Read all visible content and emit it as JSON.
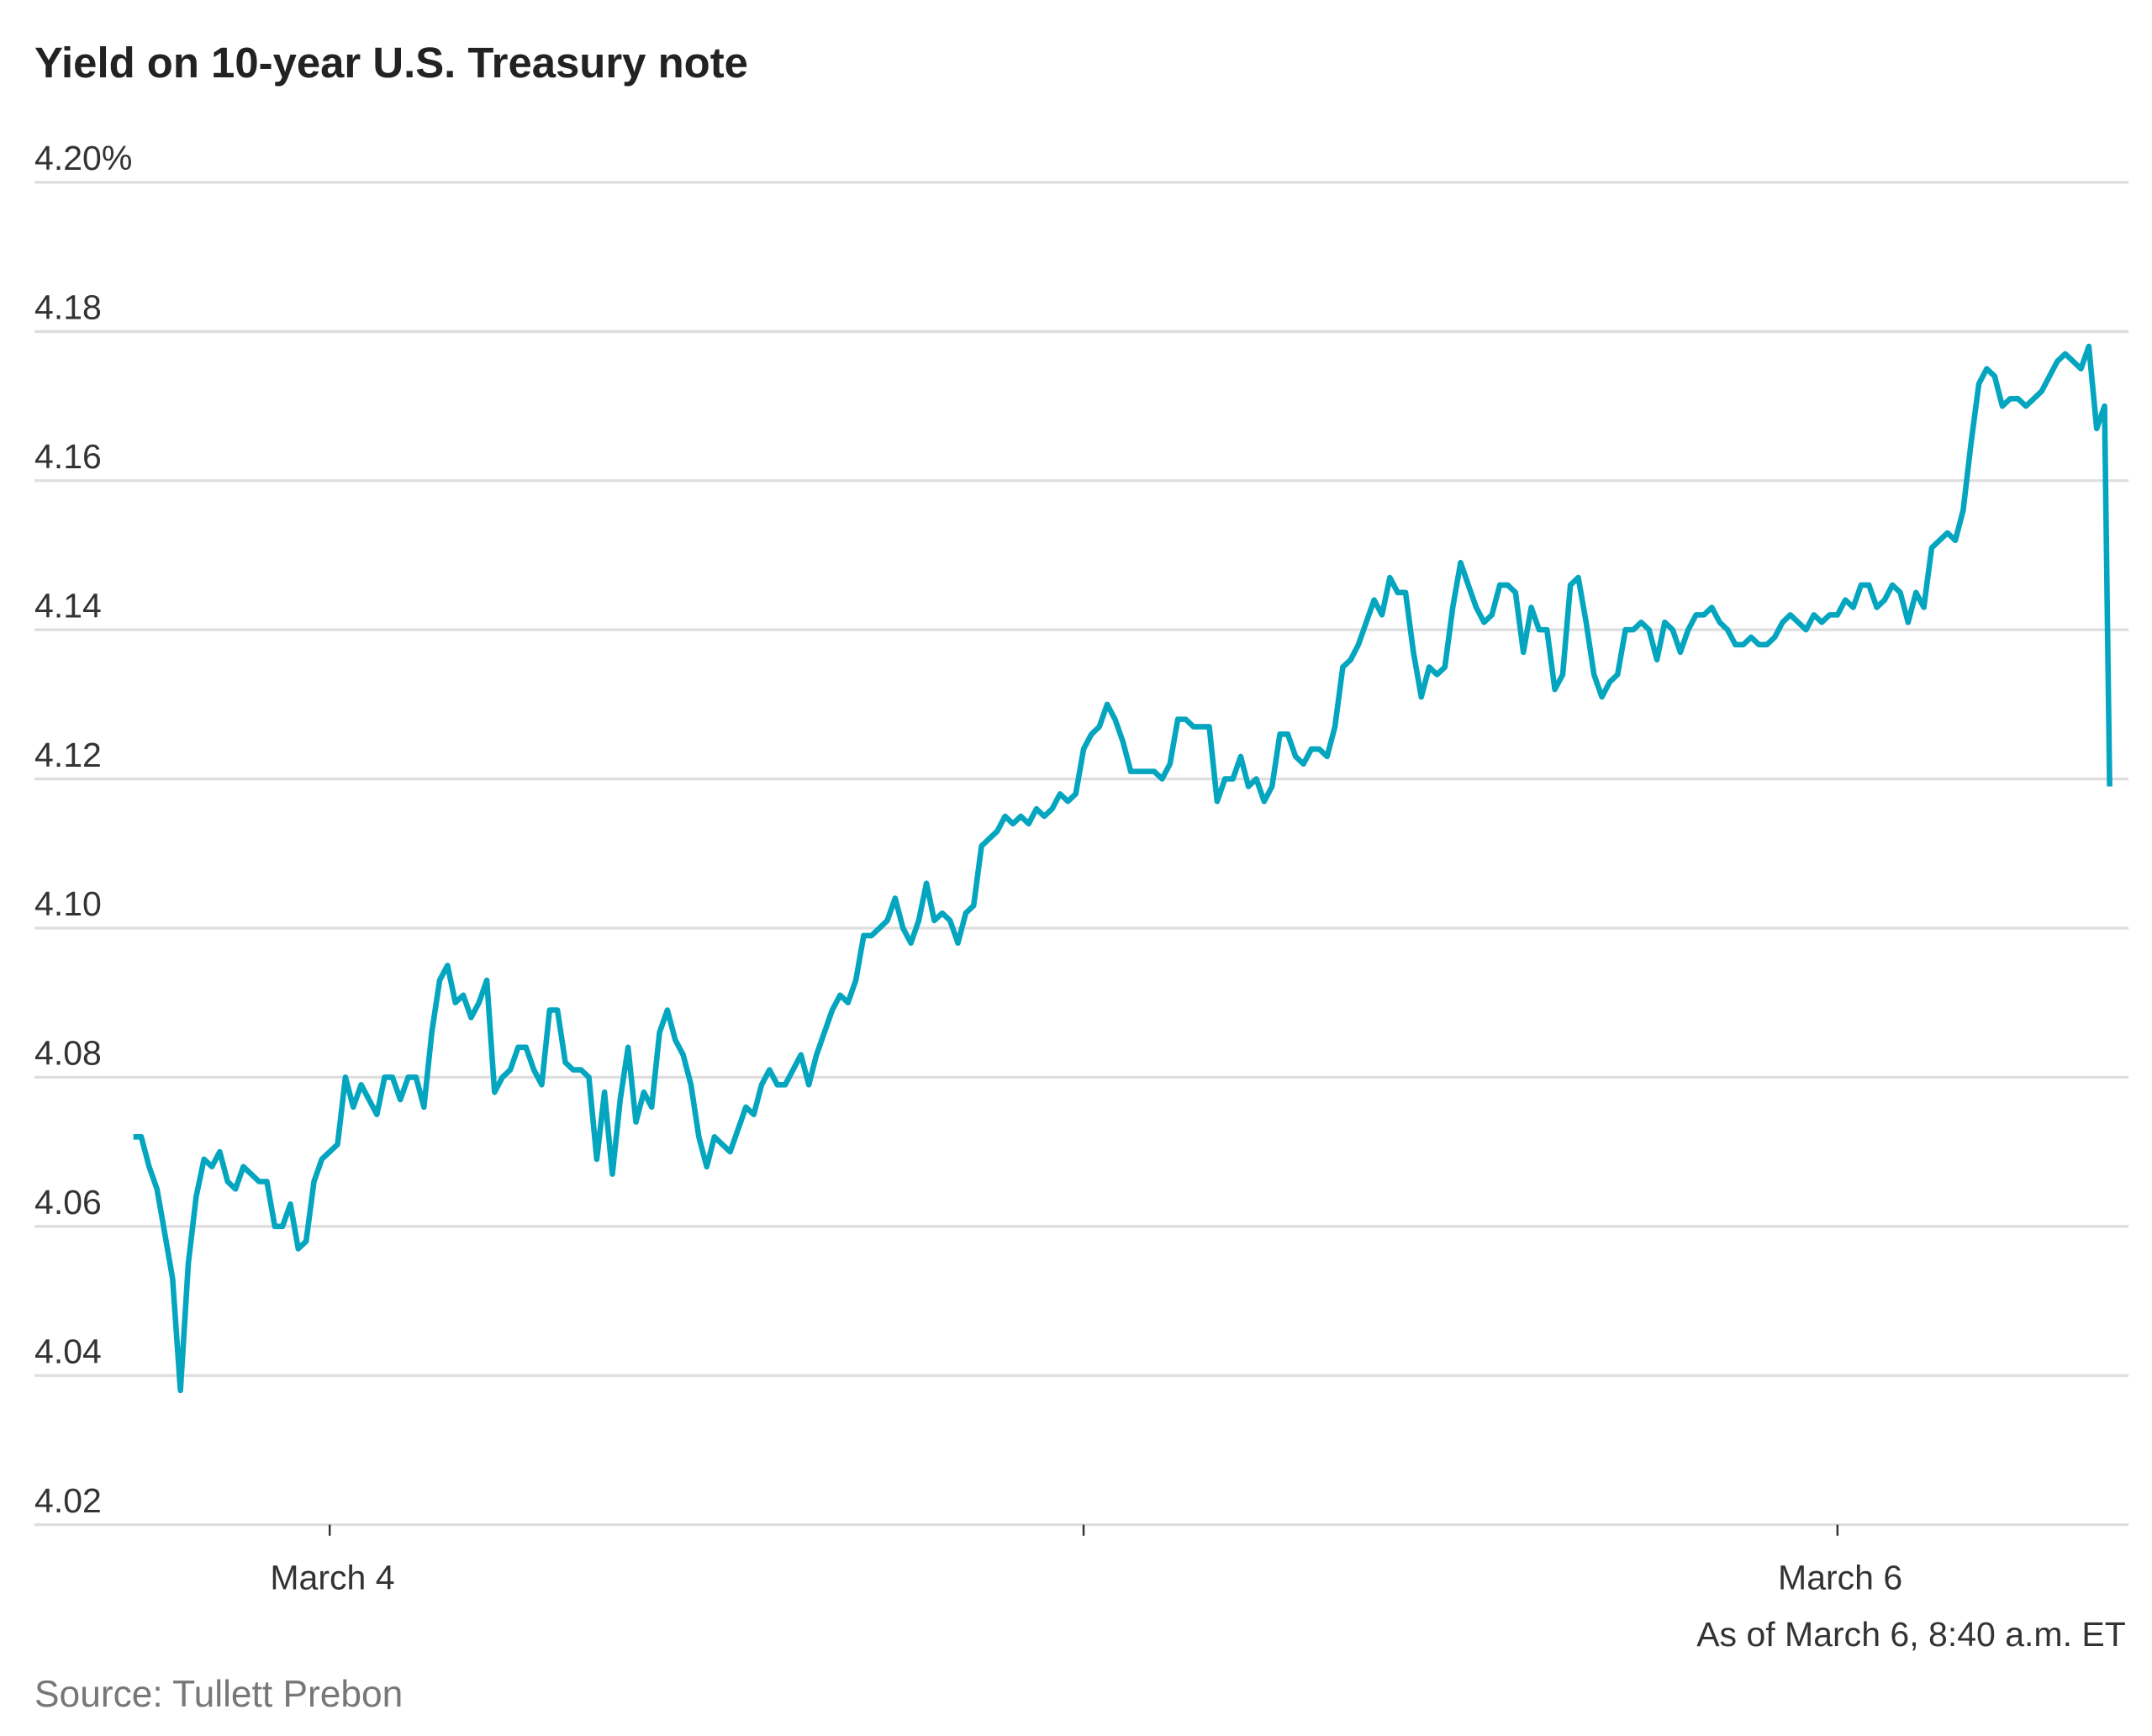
{
  "chart_data": {
    "type": "line",
    "title": "Yield on 10-year U.S. Treasury note",
    "xlabel": "",
    "ylabel": "",
    "y_unit": "%",
    "ylim": [
      4.02,
      4.2
    ],
    "y_ticks": [
      "4.20%",
      "4.18",
      "4.16",
      "4.14",
      "4.12",
      "4.10",
      "4.08",
      "4.06",
      "4.04",
      "4.02"
    ],
    "y_tick_values": [
      4.2,
      4.18,
      4.16,
      4.14,
      4.12,
      4.1,
      4.08,
      4.06,
      4.04,
      4.02
    ],
    "x_ticks": [
      {
        "time": "Mar 4 00:00",
        "label": "March 4"
      },
      {
        "time": "Mar 5 00:00",
        "label": ""
      },
      {
        "time": "Mar 6 00:00",
        "label": "March 6"
      }
    ],
    "grid": true,
    "legend": "none",
    "line_color": "#04a5bf",
    "annotation": "As of March 6, 8:40 a.m. ET",
    "source": "Source: Tullett Prebon",
    "x": [
      "Mar 3 17:45",
      "Mar 3 18:00",
      "Mar 3 18:15",
      "Mar 3 18:30",
      "Mar 3 18:45",
      "Mar 3 19:00",
      "Mar 3 19:15",
      "Mar 3 19:30",
      "Mar 3 19:45",
      "Mar 3 20:00",
      "Mar 3 20:15",
      "Mar 3 20:30",
      "Mar 3 20:45",
      "Mar 3 21:00",
      "Mar 3 21:15",
      "Mar 3 21:30",
      "Mar 3 21:45",
      "Mar 3 22:00",
      "Mar 3 22:15",
      "Mar 3 22:30",
      "Mar 3 22:45",
      "Mar 3 23:00",
      "Mar 3 23:15",
      "Mar 3 23:30",
      "Mar 3 23:45",
      "Mar 4 00:00",
      "Mar 4 00:15",
      "Mar 4 00:30",
      "Mar 4 00:45",
      "Mar 4 01:00",
      "Mar 4 01:15",
      "Mar 4 01:30",
      "Mar 4 01:45",
      "Mar 4 02:00",
      "Mar 4 02:15",
      "Mar 4 02:30",
      "Mar 4 02:45",
      "Mar 4 03:00",
      "Mar 4 03:15",
      "Mar 4 03:30",
      "Mar 4 03:45",
      "Mar 4 04:00",
      "Mar 4 04:15",
      "Mar 4 04:30",
      "Mar 4 04:45",
      "Mar 4 05:00",
      "Mar 4 05:15",
      "Mar 4 05:30",
      "Mar 4 05:45",
      "Mar 4 06:00",
      "Mar 4 06:15",
      "Mar 4 06:30",
      "Mar 4 06:45",
      "Mar 4 07:00",
      "Mar 4 07:15",
      "Mar 4 07:30",
      "Mar 4 07:45",
      "Mar 4 08:00",
      "Mar 4 08:15",
      "Mar 4 08:30",
      "Mar 4 08:45",
      "Mar 4 09:00",
      "Mar 4 09:15",
      "Mar 4 09:30",
      "Mar 4 09:45",
      "Mar 4 10:00",
      "Mar 4 10:15",
      "Mar 4 10:30",
      "Mar 4 10:45",
      "Mar 4 11:00",
      "Mar 4 11:15",
      "Mar 4 11:30",
      "Mar 4 11:45",
      "Mar 4 12:00",
      "Mar 4 12:15",
      "Mar 4 12:30",
      "Mar 4 12:45",
      "Mar 4 13:00",
      "Mar 4 13:15",
      "Mar 4 13:30",
      "Mar 4 13:45",
      "Mar 4 14:00",
      "Mar 4 14:15",
      "Mar 4 14:30",
      "Mar 4 14:45",
      "Mar 4 15:00",
      "Mar 4 15:15",
      "Mar 4 15:30",
      "Mar 4 15:45",
      "Mar 4 16:00",
      "Mar 4 16:15",
      "Mar 4 16:30",
      "Mar 4 16:45",
      "Mar 4 17:00",
      "Mar 4 17:15",
      "Mar 4 17:30",
      "Mar 4 17:45",
      "Mar 4 18:00",
      "Mar 4 18:15",
      "Mar 4 18:30",
      "Mar 4 18:45",
      "Mar 4 19:00",
      "Mar 4 19:15",
      "Mar 4 19:30",
      "Mar 4 19:45",
      "Mar 4 20:00",
      "Mar 4 20:15",
      "Mar 4 20:30",
      "Mar 4 20:45",
      "Mar 4 21:00",
      "Mar 4 21:15",
      "Mar 4 21:30",
      "Mar 4 21:45",
      "Mar 4 22:00",
      "Mar 4 22:15",
      "Mar 4 22:30",
      "Mar 4 22:45",
      "Mar 4 23:00",
      "Mar 4 23:15",
      "Mar 4 23:30",
      "Mar 4 23:45",
      "Mar 5 00:00",
      "Mar 5 00:15",
      "Mar 5 00:30",
      "Mar 5 00:45",
      "Mar 5 01:00",
      "Mar 5 01:15",
      "Mar 5 01:30",
      "Mar 5 01:45",
      "Mar 5 02:00",
      "Mar 5 02:15",
      "Mar 5 02:30",
      "Mar 5 02:45",
      "Mar 5 03:00",
      "Mar 5 03:15",
      "Mar 5 03:30",
      "Mar 5 03:45",
      "Mar 5 04:00",
      "Mar 5 04:15",
      "Mar 5 04:30",
      "Mar 5 04:45",
      "Mar 5 05:00",
      "Mar 5 05:15",
      "Mar 5 05:30",
      "Mar 5 05:45",
      "Mar 5 06:00",
      "Mar 5 06:15",
      "Mar 5 06:30",
      "Mar 5 06:45",
      "Mar 5 07:00",
      "Mar 5 07:15",
      "Mar 5 07:30",
      "Mar 5 07:45",
      "Mar 5 08:00",
      "Mar 5 08:15",
      "Mar 5 08:30",
      "Mar 5 08:45",
      "Mar 5 09:00",
      "Mar 5 09:15",
      "Mar 5 09:30",
      "Mar 5 09:45",
      "Mar 5 10:00",
      "Mar 5 10:15",
      "Mar 5 10:30",
      "Mar 5 10:45",
      "Mar 5 11:00",
      "Mar 5 11:15",
      "Mar 5 11:30",
      "Mar 5 11:45",
      "Mar 5 12:00",
      "Mar 5 12:15",
      "Mar 5 12:30",
      "Mar 5 12:45",
      "Mar 5 13:00",
      "Mar 5 13:15",
      "Mar 5 13:30",
      "Mar 5 13:45",
      "Mar 5 14:00",
      "Mar 5 14:15",
      "Mar 5 14:30",
      "Mar 5 14:45",
      "Mar 5 15:00",
      "Mar 5 15:15",
      "Mar 5 15:30",
      "Mar 5 15:45",
      "Mar 5 16:00",
      "Mar 5 16:15",
      "Mar 5 16:30",
      "Mar 5 16:45",
      "Mar 5 17:00",
      "Mar 5 17:15",
      "Mar 5 17:30",
      "Mar 5 17:45",
      "Mar 5 18:00",
      "Mar 5 18:15",
      "Mar 5 18:30",
      "Mar 5 18:45",
      "Mar 5 19:00",
      "Mar 5 19:15",
      "Mar 5 19:30",
      "Mar 5 19:45",
      "Mar 5 20:00",
      "Mar 5 20:15",
      "Mar 5 20:30",
      "Mar 5 20:45",
      "Mar 5 21:00",
      "Mar 5 21:15",
      "Mar 5 21:30",
      "Mar 5 21:45",
      "Mar 5 22:00",
      "Mar 5 22:15",
      "Mar 5 22:30",
      "Mar 5 22:45",
      "Mar 5 23:00",
      "Mar 5 23:15",
      "Mar 5 23:30",
      "Mar 5 23:45",
      "Mar 6 00:00",
      "Mar 6 00:15",
      "Mar 6 00:30",
      "Mar 6 00:45",
      "Mar 6 01:00",
      "Mar 6 01:15",
      "Mar 6 01:30",
      "Mar 6 01:45",
      "Mar 6 02:00",
      "Mar 6 02:15",
      "Mar 6 02:30",
      "Mar 6 02:45",
      "Mar 6 03:00",
      "Mar 6 03:15",
      "Mar 6 03:30",
      "Mar 6 03:45",
      "Mar 6 04:00",
      "Mar 6 04:15",
      "Mar 6 04:30",
      "Mar 6 04:45",
      "Mar 6 05:00",
      "Mar 6 05:15",
      "Mar 6 05:30",
      "Mar 6 05:45",
      "Mar 6 06:00",
      "Mar 6 06:15",
      "Mar 6 06:30",
      "Mar 6 06:45",
      "Mar 6 07:00",
      "Mar 6 07:15",
      "Mar 6 07:30",
      "Mar 6 07:45",
      "Mar 6 08:00",
      "Mar 6 08:15",
      "Mar 6 08:30",
      "Mar 6 08:40"
    ],
    "y": [
      4.072,
      4.072,
      4.068,
      4.065,
      4.059,
      4.053,
      4.038,
      4.055,
      4.064,
      4.069,
      4.068,
      4.07,
      4.066,
      4.065,
      4.068,
      4.067,
      4.066,
      4.066,
      4.06,
      4.06,
      4.063,
      4.057,
      4.058,
      4.066,
      4.069,
      4.07,
      4.071,
      4.08,
      4.076,
      4.079,
      4.077,
      4.075,
      4.08,
      4.08,
      4.077,
      4.08,
      4.08,
      4.076,
      4.086,
      4.093,
      4.095,
      4.09,
      4.091,
      4.088,
      4.09,
      4.093,
      4.078,
      4.08,
      4.081,
      4.084,
      4.084,
      4.081,
      4.079,
      4.089,
      4.089,
      4.082,
      4.081,
      4.081,
      4.08,
      4.069,
      4.078,
      4.067,
      4.077,
      4.084,
      4.074,
      4.078,
      4.076,
      4.086,
      4.089,
      4.085,
      4.083,
      4.079,
      4.072,
      4.068,
      4.072,
      4.071,
      4.07,
      4.073,
      4.076,
      4.075,
      4.079,
      4.081,
      4.079,
      4.079,
      4.081,
      4.083,
      4.079,
      4.083,
      4.086,
      4.089,
      4.091,
      4.09,
      4.093,
      4.099,
      4.099,
      4.1,
      4.101,
      4.104,
      4.1,
      4.098,
      4.101,
      4.106,
      4.101,
      4.102,
      4.101,
      4.098,
      4.102,
      4.103,
      4.111,
      4.112,
      4.113,
      4.115,
      4.114,
      4.115,
      4.114,
      4.116,
      4.115,
      4.116,
      4.118,
      4.117,
      4.118,
      4.124,
      4.126,
      4.127,
      4.13,
      4.128,
      4.125,
      4.121,
      4.121,
      4.121,
      4.121,
      4.12,
      4.122,
      4.128,
      4.128,
      4.127,
      4.127,
      4.127,
      4.117,
      4.12,
      4.12,
      4.123,
      4.119,
      4.12,
      4.117,
      4.119,
      4.126,
      4.126,
      4.123,
      4.122,
      4.124,
      4.124,
      4.123,
      4.127,
      4.135,
      4.136,
      4.138,
      4.141,
      4.144,
      4.142,
      4.147,
      4.145,
      4.145,
      4.137,
      4.131,
      4.135,
      4.134,
      4.135,
      4.143,
      4.149,
      4.146,
      4.143,
      4.141,
      4.142,
      4.146,
      4.146,
      4.145,
      4.137,
      4.143,
      4.14,
      4.14,
      4.132,
      4.134,
      4.146,
      4.147,
      4.141,
      4.134,
      4.131,
      4.133,
      4.134,
      4.14,
      4.14,
      4.141,
      4.14,
      4.136,
      4.141,
      4.14,
      4.137,
      4.14,
      4.142,
      4.142,
      4.143,
      4.141,
      4.14,
      4.138,
      4.138,
      4.139,
      4.138,
      4.138,
      4.139,
      4.141,
      4.142,
      4.141,
      4.14,
      4.142,
      4.141,
      4.142,
      4.142,
      4.144,
      4.143,
      4.146,
      4.146,
      4.143,
      4.144,
      4.146,
      4.145,
      4.141,
      4.145,
      4.143,
      4.151,
      4.152,
      4.153,
      4.152,
      4.156,
      4.165,
      4.173,
      4.175,
      4.174,
      4.17,
      4.171,
      4.171,
      4.17,
      4.171,
      4.172,
      4.174,
      4.176,
      4.177,
      4.176,
      4.175,
      4.178,
      4.167,
      4.17,
      4.119
    ]
  }
}
